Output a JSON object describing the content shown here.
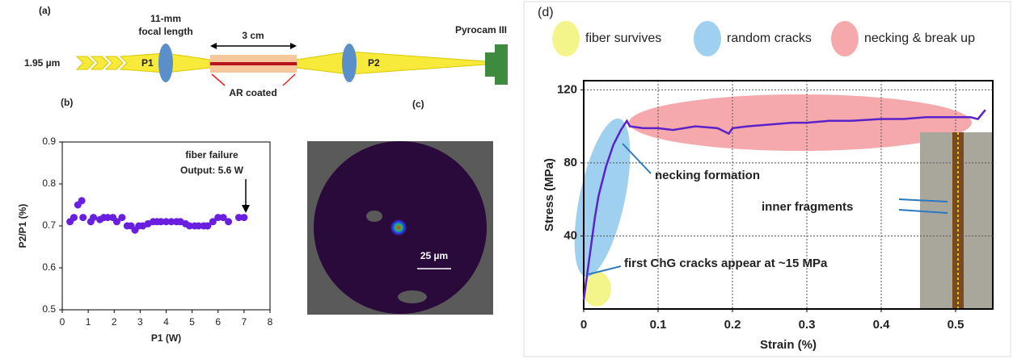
{
  "diagram": {
    "label": "(a)",
    "source": "1.95 µm",
    "lens_label": [
      "11-mm",
      "focal length"
    ],
    "length": "3 cm",
    "p1": "P1",
    "p2": "P2",
    "coating": "AR coated",
    "detector": "Pyrocam III"
  },
  "image": {
    "label": "(c)",
    "scale_bar": "25 µm"
  },
  "chart_data": [
    {
      "type": "scatter",
      "label": "(b)",
      "x_label": "P1 (W)",
      "y_label": "P2/P1 (%)",
      "annotations": [
        "fiber failure",
        "Output: 5.6 W"
      ],
      "xlim": [
        0,
        8
      ],
      "xticks": [
        0,
        1,
        2,
        3,
        4,
        5,
        6,
        7,
        8
      ],
      "ylim": [
        0.5,
        0.9
      ],
      "yticks": [
        0.5,
        0.6,
        0.7,
        0.8,
        0.9
      ],
      "color": "#6a1fe0",
      "x": [
        0.3,
        0.45,
        0.6,
        0.75,
        0.8,
        1.1,
        1.2,
        1.45,
        1.6,
        1.75,
        1.95,
        2.1,
        2.3,
        2.5,
        2.65,
        2.8,
        2.95,
        3.1,
        3.3,
        3.5,
        3.65,
        3.8,
        4.0,
        4.2,
        4.4,
        4.55,
        4.75,
        4.9,
        5.1,
        5.25,
        5.45,
        5.6,
        5.8,
        6.0,
        6.2,
        6.4,
        6.8,
        7.0
      ],
      "values": [
        0.71,
        0.72,
        0.75,
        0.76,
        0.72,
        0.71,
        0.72,
        0.715,
        0.72,
        0.72,
        0.72,
        0.71,
        0.72,
        0.7,
        0.7,
        0.69,
        0.7,
        0.7,
        0.705,
        0.71,
        0.71,
        0.71,
        0.71,
        0.71,
        0.71,
        0.71,
        0.705,
        0.7,
        0.7,
        0.7,
        0.7,
        0.7,
        0.71,
        0.72,
        0.72,
        0.71,
        0.72,
        0.72
      ]
    },
    {
      "type": "line",
      "label": "(d)",
      "x_label": "Strain (%)",
      "y_label": "Stress (MPa)",
      "xlim": [
        0,
        0.55
      ],
      "xticks": [
        0,
        0.1,
        0.2,
        0.3,
        0.4,
        0.5
      ],
      "ylim": [
        0,
        125
      ],
      "yticks": [
        40,
        80,
        120
      ],
      "grid": true,
      "color": "#5a22c8",
      "regions": [
        {
          "name": "fiber survives",
          "color": "#f3f58a"
        },
        {
          "name": "random cracks",
          "color": "#9fd0ef"
        },
        {
          "name": "necking & break up",
          "color": "#f6a9ac"
        }
      ],
      "annotations": [
        "necking formation",
        "inner fragments",
        "first ChG cracks appear at ~15 MPa"
      ],
      "x": [
        0,
        0.005,
        0.01,
        0.015,
        0.02,
        0.03,
        0.04,
        0.05,
        0.058,
        0.062,
        0.08,
        0.1,
        0.12,
        0.15,
        0.18,
        0.195,
        0.2,
        0.22,
        0.25,
        0.28,
        0.3,
        0.33,
        0.36,
        0.4,
        0.43,
        0.46,
        0.5,
        0.52,
        0.53,
        0.54
      ],
      "values": [
        5,
        20,
        35,
        50,
        62,
        78,
        90,
        98,
        103,
        100,
        99,
        99,
        98,
        100,
        99,
        96,
        99,
        100,
        101,
        102,
        102,
        103,
        103,
        104,
        104,
        105,
        105,
        105,
        104,
        109
      ]
    }
  ]
}
